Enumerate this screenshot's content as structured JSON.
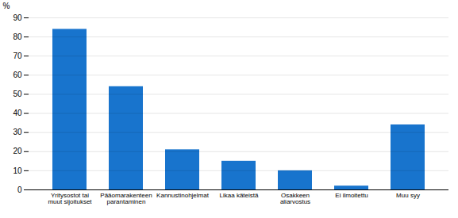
{
  "chart_data": {
    "type": "bar",
    "categories": [
      "Yritysostot tai\nmuut sijoitukset",
      "Pääomarakenteen\nparantaminen",
      "Kannustinohjelmat",
      "Likaa käteistä",
      "Osakkeen\naliarvostus",
      "Ei ilmoitettu",
      "Muu syy"
    ],
    "values": [
      84,
      54,
      21,
      15,
      10,
      2,
      34
    ],
    "color": "#1874CD",
    "ylabel": "%",
    "ylim": [
      0,
      90
    ],
    "yticks": [
      0,
      10,
      20,
      30,
      40,
      50,
      60,
      70,
      80,
      90
    ],
    "grid": true
  }
}
